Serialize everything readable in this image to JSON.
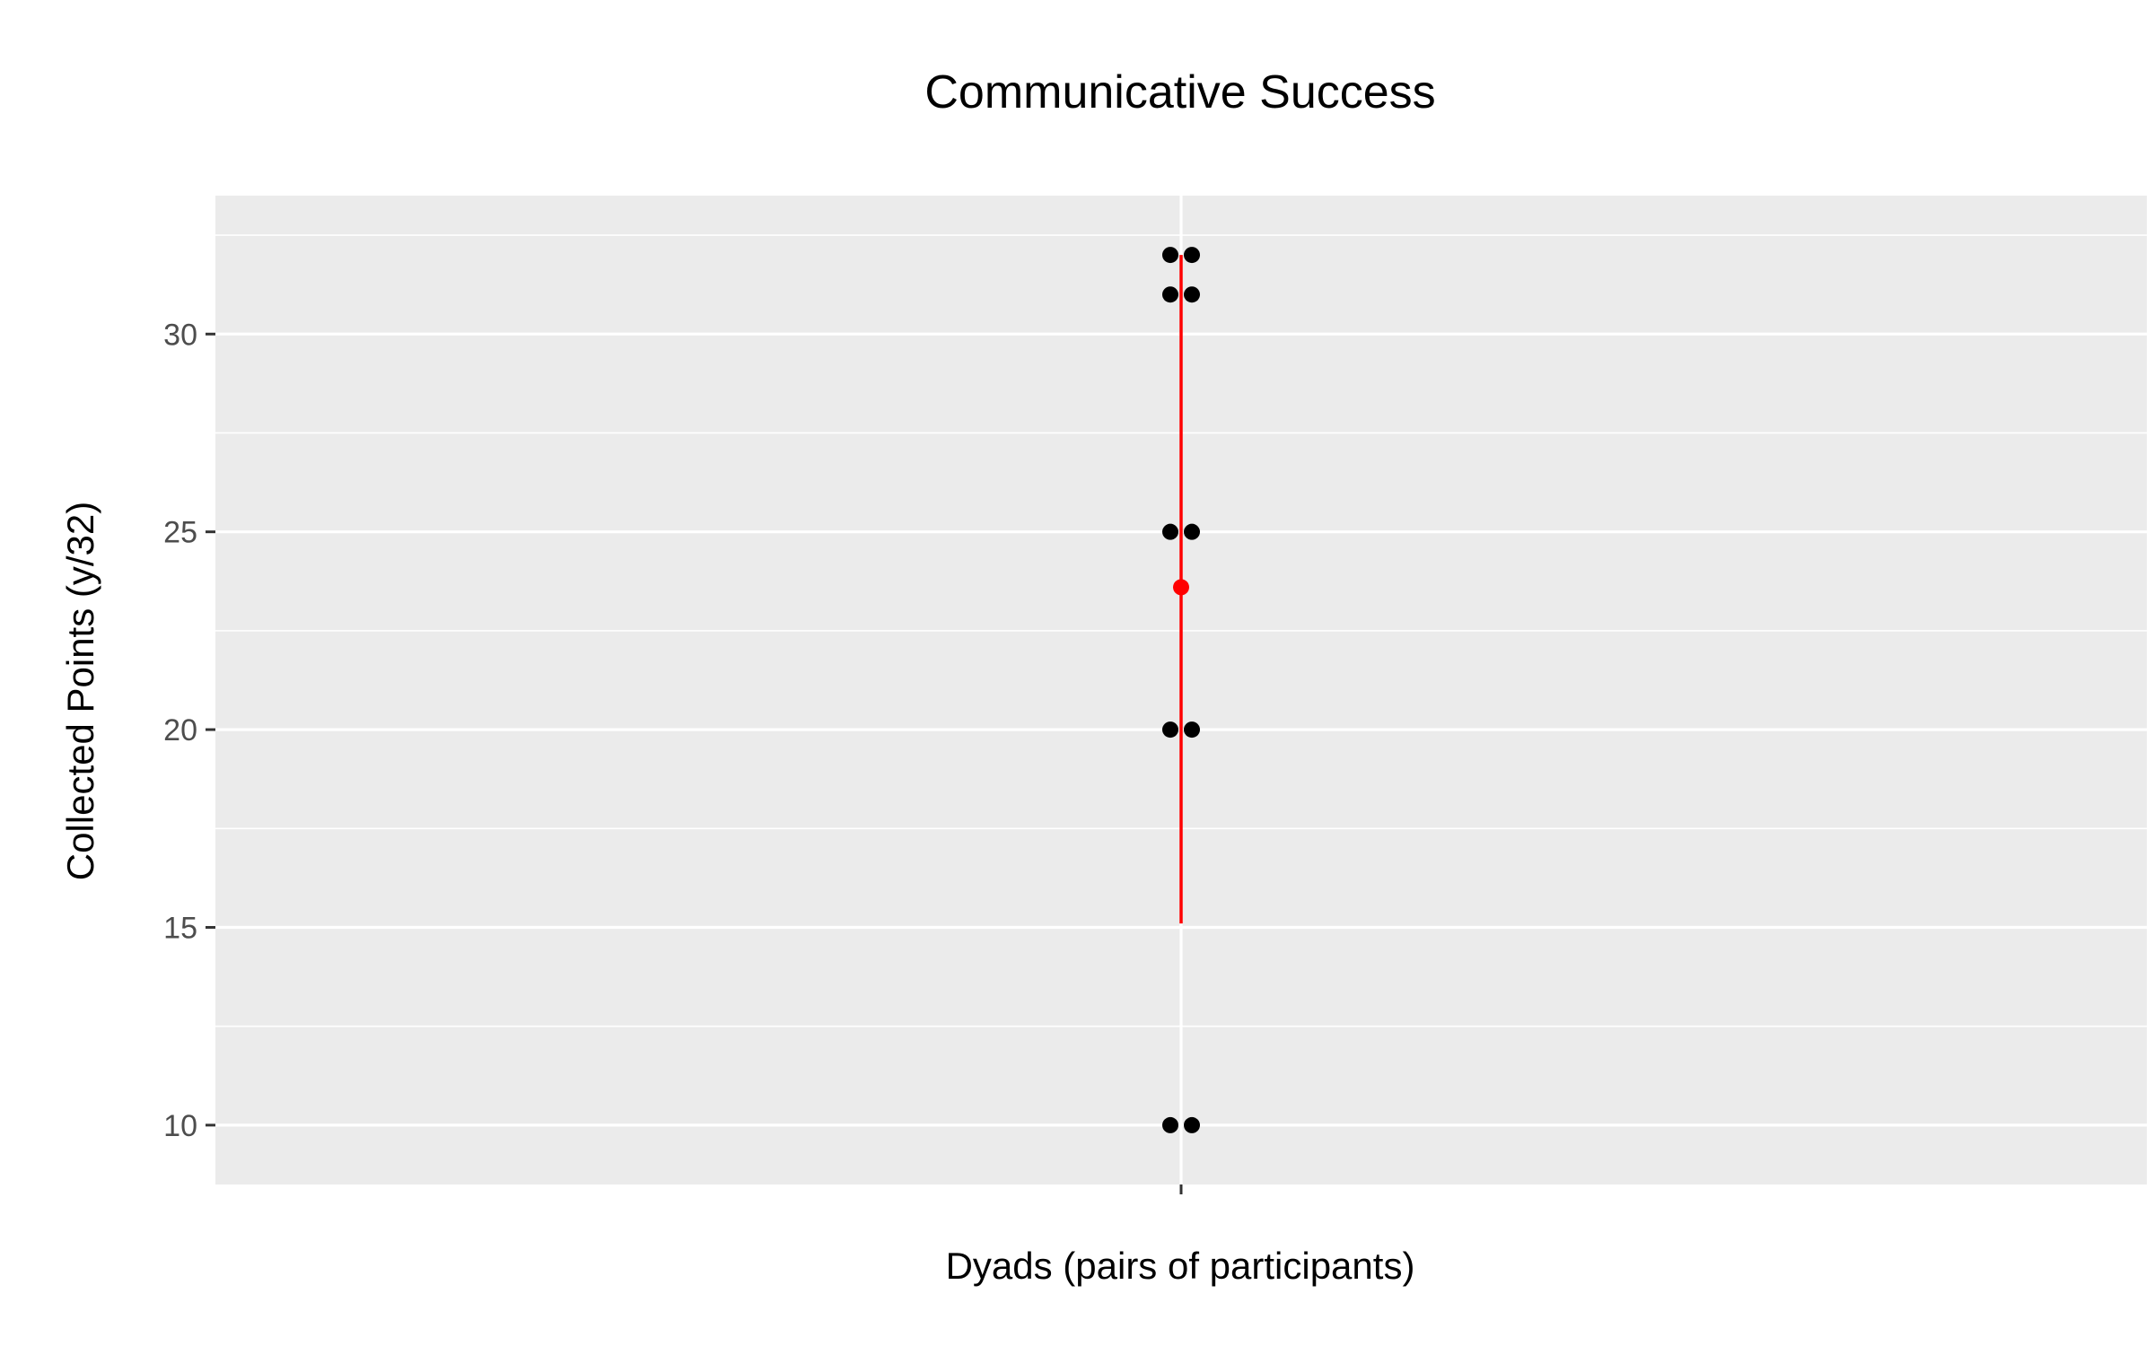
{
  "chart_data": {
    "type": "scatter",
    "title": "Communicative Success",
    "xlabel": "Dyads (pairs of participants)",
    "ylabel": "Collected Points (y/32)",
    "ylim": [
      8.5,
      33.5
    ],
    "y_ticks": [
      10,
      15,
      20,
      25,
      30
    ],
    "y_tick_labels": [
      "10",
      "15",
      "20",
      "25",
      "30"
    ],
    "grid": true,
    "legend": "none",
    "points": [
      {
        "y": 32,
        "side": "left"
      },
      {
        "y": 32,
        "side": "right"
      },
      {
        "y": 31,
        "side": "left"
      },
      {
        "y": 31,
        "side": "right"
      },
      {
        "y": 25,
        "side": "left"
      },
      {
        "y": 25,
        "side": "right"
      },
      {
        "y": 20,
        "side": "left"
      },
      {
        "y": 20,
        "side": "right"
      },
      {
        "y": 10,
        "side": "left"
      },
      {
        "y": 10,
        "side": "right"
      }
    ],
    "summary": {
      "mean": 23.6,
      "lower": 15.1,
      "upper": 32
    },
    "colors": {
      "panel_background": "#ebebeb",
      "grid": "#ffffff",
      "points": "#000000",
      "summary": "#ff0000",
      "tick_text": "#4d4d4d"
    }
  }
}
